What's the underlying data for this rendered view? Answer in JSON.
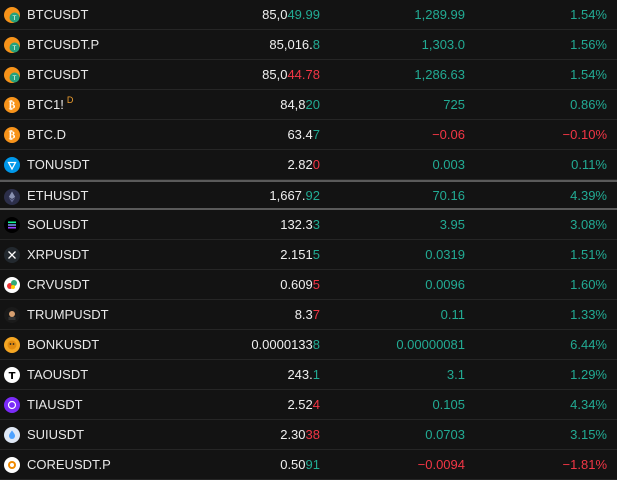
{
  "watchlist": {
    "rows": [
      {
        "symbol": "BTCUSDT",
        "badge": "",
        "last_base": "85,0",
        "last_tail": "49.99",
        "tail_dir": "up",
        "change": "1,289.99",
        "change_dir": "up",
        "pct": "1.54%",
        "pct_dir": "up",
        "icon": "btc-tether-icon"
      },
      {
        "symbol": "BTCUSDT.P",
        "badge": "",
        "last_base": "85,016.",
        "last_tail": "8",
        "tail_dir": "up",
        "change": "1,303.0",
        "change_dir": "up",
        "pct": "1.56%",
        "pct_dir": "up",
        "icon": "btc-tether-icon"
      },
      {
        "symbol": "BTCUSDT",
        "badge": "",
        "last_base": "85,0",
        "last_tail": "44.78",
        "tail_dir": "dn",
        "change": "1,286.63",
        "change_dir": "up",
        "pct": "1.54%",
        "pct_dir": "up",
        "icon": "btc-tether-icon"
      },
      {
        "symbol": "BTC1!",
        "badge": "D",
        "last_base": "84,8",
        "last_tail": "20",
        "tail_dir": "up",
        "change": "725",
        "change_dir": "up",
        "pct": "0.86%",
        "pct_dir": "up",
        "icon": "bitcoin-icon"
      },
      {
        "symbol": "BTC.D",
        "badge": "",
        "last_base": "63.4",
        "last_tail": "7",
        "tail_dir": "up",
        "change": "−0.06",
        "change_dir": "dn",
        "pct": "−0.10%",
        "pct_dir": "dn",
        "icon": "bitcoin-icon"
      },
      {
        "symbol": "TONUSDT",
        "badge": "",
        "last_base": "2.82",
        "last_tail": "0",
        "tail_dir": "dn",
        "change": "0.003",
        "change_dir": "up",
        "pct": "0.11%",
        "pct_dir": "up",
        "icon": "ton-icon"
      },
      {
        "symbol": "ETHUSDT",
        "badge": "",
        "last_base": "1,667.",
        "last_tail": "92",
        "tail_dir": "up",
        "change": "70.16",
        "change_dir": "up",
        "pct": "4.39%",
        "pct_dir": "up",
        "icon": "ethereum-icon",
        "selected": true
      },
      {
        "symbol": "SOLUSDT",
        "badge": "",
        "last_base": "132.3",
        "last_tail": "3",
        "tail_dir": "up",
        "change": "3.95",
        "change_dir": "up",
        "pct": "3.08%",
        "pct_dir": "up",
        "icon": "solana-icon"
      },
      {
        "symbol": "XRPUSDT",
        "badge": "",
        "last_base": "2.151",
        "last_tail": "5",
        "tail_dir": "up",
        "change": "0.0319",
        "change_dir": "up",
        "pct": "1.51%",
        "pct_dir": "up",
        "icon": "xrp-icon"
      },
      {
        "symbol": "CRVUSDT",
        "badge": "",
        "last_base": "0.609",
        "last_tail": "5",
        "tail_dir": "dn",
        "change": "0.0096",
        "change_dir": "up",
        "pct": "1.60%",
        "pct_dir": "up",
        "icon": "curve-icon"
      },
      {
        "symbol": "TRUMPUSDT",
        "badge": "",
        "last_base": "8.3",
        "last_tail": "7",
        "tail_dir": "dn",
        "change": "0.11",
        "change_dir": "up",
        "pct": "1.33%",
        "pct_dir": "up",
        "icon": "trump-icon"
      },
      {
        "symbol": "BONKUSDT",
        "badge": "",
        "last_base": "0.0000133",
        "last_tail": "8",
        "tail_dir": "up",
        "change": "0.00000081",
        "change_dir": "up",
        "pct": "6.44%",
        "pct_dir": "up",
        "icon": "bonk-icon"
      },
      {
        "symbol": "TAOUSDT",
        "badge": "",
        "last_base": "243.",
        "last_tail": "1",
        "tail_dir": "up",
        "change": "3.1",
        "change_dir": "up",
        "pct": "1.29%",
        "pct_dir": "up",
        "icon": "bittensor-icon"
      },
      {
        "symbol": "TIAUSDT",
        "badge": "",
        "last_base": "2.52",
        "last_tail": "4",
        "tail_dir": "dn",
        "change": "0.105",
        "change_dir": "up",
        "pct": "4.34%",
        "pct_dir": "up",
        "icon": "celestia-icon"
      },
      {
        "symbol": "SUIUSDT",
        "badge": "",
        "last_base": "2.30",
        "last_tail": "38",
        "tail_dir": "dn",
        "change": "0.0703",
        "change_dir": "up",
        "pct": "3.15%",
        "pct_dir": "up",
        "icon": "sui-icon"
      },
      {
        "symbol": "COREUSDT.P",
        "badge": "",
        "last_base": "0.50",
        "last_tail": "91",
        "tail_dir": "up",
        "change": "−0.0094",
        "change_dir": "dn",
        "pct": "−1.81%",
        "pct_dir": "dn",
        "icon": "core-icon"
      }
    ]
  },
  "colors": {
    "up": "#22ab94",
    "down": "#f23645",
    "text": "#f0f0f0",
    "bg": "#131313"
  }
}
